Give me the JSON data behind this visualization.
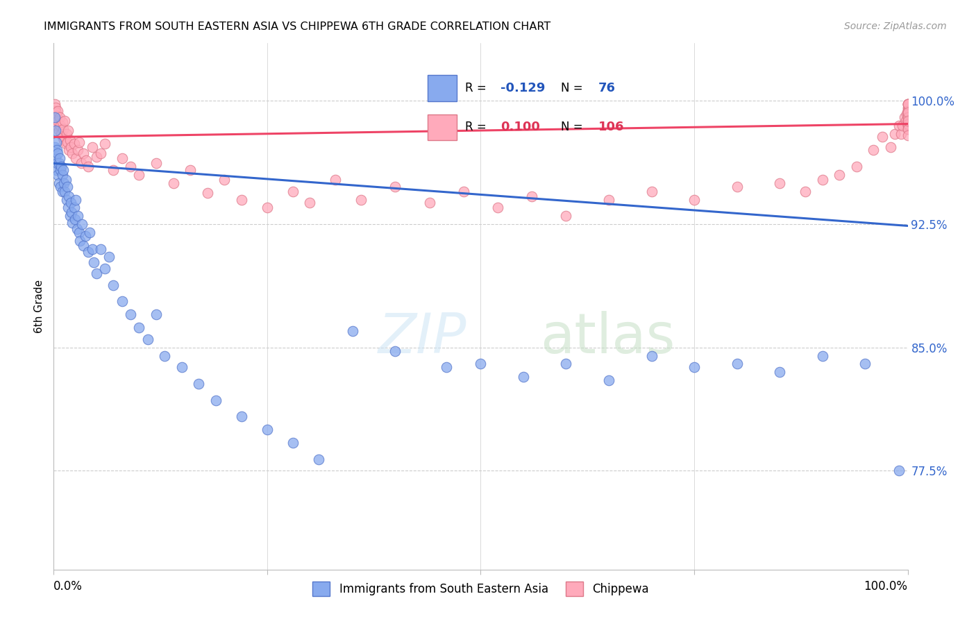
{
  "title": "IMMIGRANTS FROM SOUTH EASTERN ASIA VS CHIPPEWA 6TH GRADE CORRELATION CHART",
  "source": "Source: ZipAtlas.com",
  "ylabel": "6th Grade",
  "ytick_labels": [
    "77.5%",
    "85.0%",
    "92.5%",
    "100.0%"
  ],
  "ytick_values": [
    0.775,
    0.85,
    0.925,
    1.0
  ],
  "blue_R": -0.129,
  "blue_N": 76,
  "pink_R": 0.1,
  "pink_N": 106,
  "blue_line_color": "#3366cc",
  "pink_line_color": "#ee4466",
  "blue_dot_color": "#88aaee",
  "pink_dot_color": "#ffaabb",
  "blue_dot_edge": "#5577cc",
  "pink_dot_edge": "#dd7788",
  "background_color": "#ffffff",
  "grid_color": "#cccccc",
  "xmin": 0.0,
  "xmax": 1.0,
  "ymin": 0.715,
  "ymax": 1.035,
  "blue_line_y0": 0.962,
  "blue_line_y1": 0.924,
  "pink_line_y0": 0.978,
  "pink_line_y1": 0.986,
  "blue_scatter_x": [
    0.001,
    0.001,
    0.002,
    0.002,
    0.003,
    0.003,
    0.004,
    0.004,
    0.005,
    0.005,
    0.006,
    0.006,
    0.007,
    0.008,
    0.008,
    0.009,
    0.01,
    0.01,
    0.011,
    0.012,
    0.013,
    0.014,
    0.015,
    0.016,
    0.017,
    0.018,
    0.019,
    0.02,
    0.021,
    0.022,
    0.024,
    0.025,
    0.026,
    0.027,
    0.028,
    0.03,
    0.031,
    0.033,
    0.035,
    0.037,
    0.04,
    0.042,
    0.045,
    0.047,
    0.05,
    0.055,
    0.06,
    0.065,
    0.07,
    0.08,
    0.09,
    0.1,
    0.11,
    0.12,
    0.13,
    0.15,
    0.17,
    0.19,
    0.22,
    0.25,
    0.28,
    0.31,
    0.35,
    0.4,
    0.46,
    0.5,
    0.55,
    0.6,
    0.65,
    0.7,
    0.75,
    0.8,
    0.85,
    0.9,
    0.95,
    0.99
  ],
  "blue_scatter_y": [
    0.99,
    0.972,
    0.982,
    0.965,
    0.975,
    0.958,
    0.97,
    0.962,
    0.968,
    0.955,
    0.962,
    0.95,
    0.965,
    0.958,
    0.948,
    0.96,
    0.955,
    0.945,
    0.958,
    0.95,
    0.945,
    0.952,
    0.94,
    0.948,
    0.935,
    0.942,
    0.93,
    0.938,
    0.932,
    0.926,
    0.935,
    0.928,
    0.94,
    0.922,
    0.93,
    0.92,
    0.915,
    0.925,
    0.912,
    0.918,
    0.908,
    0.92,
    0.91,
    0.902,
    0.895,
    0.91,
    0.898,
    0.905,
    0.888,
    0.878,
    0.87,
    0.862,
    0.855,
    0.87,
    0.845,
    0.838,
    0.828,
    0.818,
    0.808,
    0.8,
    0.792,
    0.782,
    0.86,
    0.848,
    0.838,
    0.84,
    0.832,
    0.84,
    0.83,
    0.845,
    0.838,
    0.84,
    0.835,
    0.845,
    0.84,
    0.775
  ],
  "pink_scatter_x": [
    0.001,
    0.001,
    0.002,
    0.002,
    0.003,
    0.003,
    0.004,
    0.004,
    0.005,
    0.005,
    0.006,
    0.007,
    0.008,
    0.009,
    0.01,
    0.01,
    0.011,
    0.012,
    0.013,
    0.014,
    0.015,
    0.016,
    0.017,
    0.018,
    0.019,
    0.02,
    0.022,
    0.024,
    0.026,
    0.028,
    0.03,
    0.032,
    0.035,
    0.038,
    0.04,
    0.045,
    0.05,
    0.055,
    0.06,
    0.07,
    0.08,
    0.09,
    0.1,
    0.12,
    0.14,
    0.16,
    0.18,
    0.2,
    0.22,
    0.25,
    0.28,
    0.3,
    0.33,
    0.36,
    0.4,
    0.44,
    0.48,
    0.52,
    0.56,
    0.6,
    0.65,
    0.7,
    0.75,
    0.8,
    0.85,
    0.88,
    0.9,
    0.92,
    0.94,
    0.96,
    0.97,
    0.98,
    0.985,
    0.99,
    0.992,
    0.994,
    0.996,
    0.998,
    0.999,
    1.0,
    1.0,
    1.0,
    1.0,
    1.0,
    1.0,
    1.0,
    1.0,
    1.0,
    1.0,
    1.0,
    1.0,
    1.0,
    1.0,
    1.0,
    1.0,
    1.0,
    1.0,
    1.0,
    1.0,
    1.0,
    1.0,
    1.0,
    1.0,
    1.0,
    1.0,
    1.0
  ],
  "pink_scatter_y": [
    0.998,
    0.994,
    0.996,
    0.99,
    0.993,
    0.987,
    0.991,
    0.985,
    0.994,
    0.988,
    0.982,
    0.99,
    0.985,
    0.98,
    0.987,
    0.978,
    0.983,
    0.976,
    0.988,
    0.974,
    0.98,
    0.975,
    0.982,
    0.97,
    0.976,
    0.972,
    0.968,
    0.974,
    0.965,
    0.97,
    0.975,
    0.962,
    0.968,
    0.964,
    0.96,
    0.972,
    0.966,
    0.968,
    0.974,
    0.958,
    0.965,
    0.96,
    0.955,
    0.962,
    0.95,
    0.958,
    0.944,
    0.952,
    0.94,
    0.935,
    0.945,
    0.938,
    0.952,
    0.94,
    0.948,
    0.938,
    0.945,
    0.935,
    0.942,
    0.93,
    0.94,
    0.945,
    0.94,
    0.948,
    0.95,
    0.945,
    0.952,
    0.955,
    0.96,
    0.97,
    0.978,
    0.972,
    0.98,
    0.985,
    0.98,
    0.985,
    0.99,
    0.988,
    0.992,
    0.998,
    0.995,
    0.992,
    0.988,
    0.985,
    0.998,
    0.994,
    0.99,
    0.987,
    0.996,
    0.992,
    0.988,
    0.985,
    0.998,
    0.994,
    0.99,
    0.987,
    0.983,
    0.998,
    0.994,
    0.99,
    0.986,
    0.983,
    0.979,
    0.998,
    0.993,
    0.988
  ]
}
